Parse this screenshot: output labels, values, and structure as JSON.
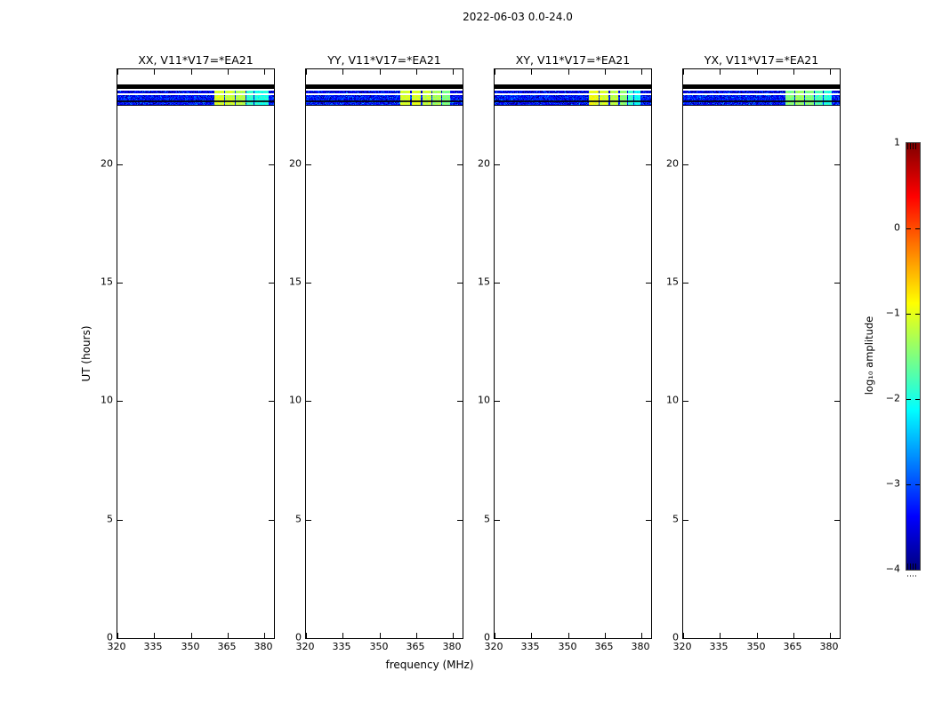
{
  "figure": {
    "suptitle": "2022-06-03 0.0-24.0",
    "xlabel": "frequency (MHz)",
    "ylabel": "UT (hours)"
  },
  "chart_data": {
    "type": "heatmap",
    "title": "2022-06-03 0.0-24.0",
    "xlabel": "frequency (MHz)",
    "ylabel": "UT (hours)",
    "grid": false,
    "colormap": "jet",
    "x_range_mhz": [
      320,
      384
    ],
    "y_range_hours": [
      0,
      24
    ],
    "x_tick_values_mhz": [
      320,
      335,
      350,
      365,
      380
    ],
    "x_tick_labels": [
      "320",
      "335",
      "350",
      "365",
      "380"
    ],
    "y_tick_values_hours": [
      0,
      5,
      10,
      15,
      20
    ],
    "y_tick_labels": [
      "0",
      "5",
      "10",
      "15",
      "20"
    ],
    "colorbar": {
      "label": "log₁₀ amplitude",
      "position": "right",
      "value_range": [
        -4,
        1
      ],
      "tick_values": [
        1,
        0,
        -1,
        -2,
        -3,
        -4
      ],
      "tick_labels": [
        "1",
        "0",
        "−1",
        "−2",
        "−3",
        "−4"
      ]
    },
    "time_bands": {
      "flagged_black_bar_hours": [
        23.18,
        23.36
      ],
      "narrow_noise_row_hours": [
        22.99,
        23.1
      ],
      "main_band_hours": [
        22.46,
        22.91
      ],
      "flagged_lines_hours": [
        [
          22.61,
          22.67
        ],
        [
          22.46,
          22.5
        ]
      ],
      "noise_floor_log10": -3.3,
      "narrow_row_noise_log10": -3.5
    },
    "panels": [
      {
        "pol": "XX",
        "label": "XX, V11*V17=*EA21",
        "rfi_segments_mhz": [
          [
            359.5,
            363.5,
            -1.05
          ],
          [
            364.0,
            367.8,
            -1.1
          ],
          [
            368.3,
            372.0,
            -1.25
          ],
          [
            372.5,
            375.5,
            -1.9
          ],
          [
            376.0,
            381.5,
            -2.0
          ]
        ]
      },
      {
        "pol": "YY",
        "label": "YY, V11*V17=*EA21",
        "rfi_segments_mhz": [
          [
            358.3,
            362.5,
            -1.1
          ],
          [
            363.0,
            366.8,
            -1.05
          ],
          [
            367.3,
            371.0,
            -1.15
          ],
          [
            371.5,
            375.0,
            -1.3
          ],
          [
            375.5,
            378.8,
            -1.5
          ]
        ]
      },
      {
        "pol": "XY",
        "label": "XY, V11*V17=*EA21",
        "rfi_segments_mhz": [
          [
            358.3,
            362.3,
            -0.95
          ],
          [
            362.8,
            366.5,
            -1.1
          ],
          [
            367.0,
            370.5,
            -1.2
          ],
          [
            371.0,
            374.0,
            -1.45
          ],
          [
            374.5,
            376.5,
            -1.9
          ],
          [
            377.0,
            379.5,
            -2.05
          ]
        ]
      },
      {
        "pol": "YX",
        "label": "YX, V11*V17=*EA21",
        "rfi_segments_mhz": [
          [
            361.5,
            365.3,
            -1.5
          ],
          [
            365.8,
            369.3,
            -1.35
          ],
          [
            369.8,
            373.3,
            -1.5
          ],
          [
            373.8,
            376.8,
            -1.75
          ],
          [
            377.3,
            380.5,
            -1.95
          ]
        ]
      }
    ]
  }
}
